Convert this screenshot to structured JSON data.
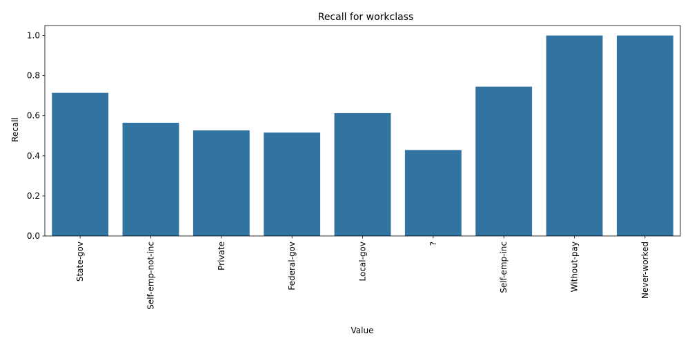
{
  "chart_data": {
    "type": "bar",
    "title": "Recall for workclass",
    "xlabel": "Value",
    "ylabel": "Recall",
    "categories": [
      "State-gov",
      "Self-emp-not-inc",
      "Private",
      "Federal-gov",
      "Local-gov",
      "?",
      "Self-emp-inc",
      "Without-pay",
      "Never-worked"
    ],
    "values": [
      0.714,
      0.565,
      0.527,
      0.516,
      0.613,
      0.429,
      0.745,
      1.0,
      1.0
    ],
    "ylim": [
      0,
      1.05
    ],
    "yticks": [
      0.0,
      0.2,
      0.4,
      0.6,
      0.8,
      1.0
    ],
    "ytick_labels": [
      "0.0",
      "0.2",
      "0.4",
      "0.6",
      "0.8",
      "1.0"
    ],
    "bar_color": "#3274a1",
    "grid": false,
    "legend": "none"
  }
}
